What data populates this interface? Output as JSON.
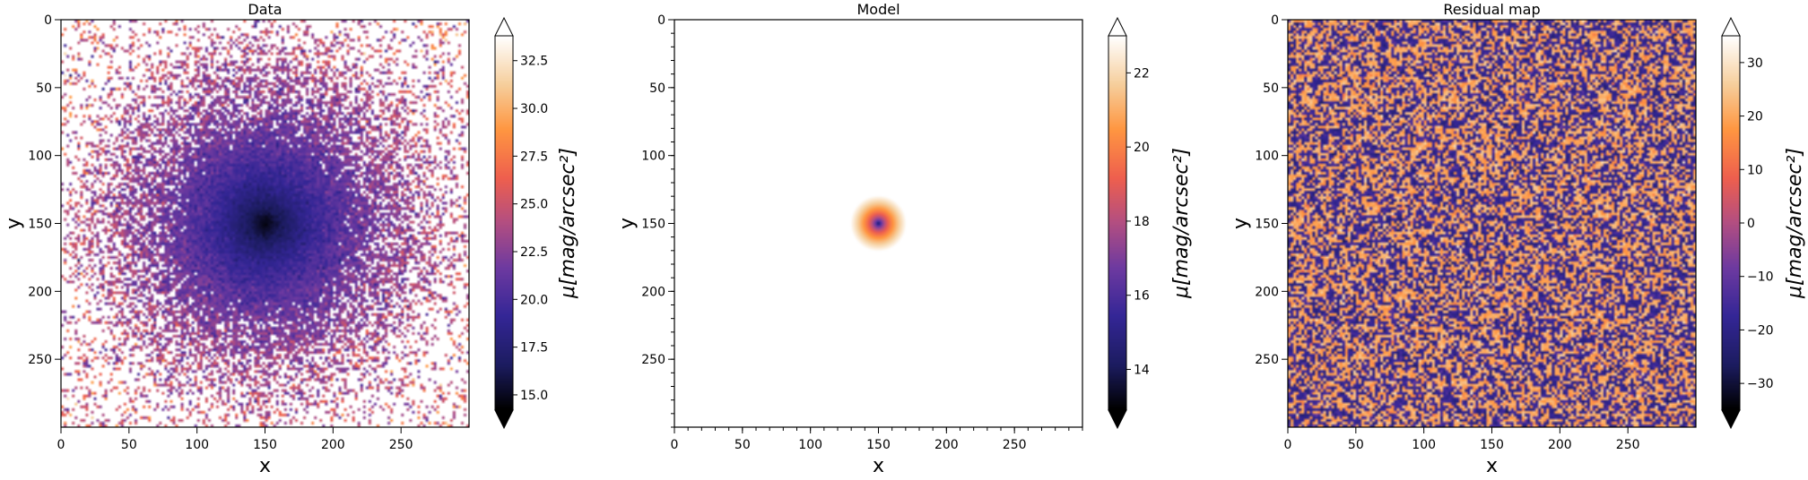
{
  "chart_data": [
    {
      "type": "heatmap",
      "title": "Data",
      "xlabel": "x",
      "ylabel": "y",
      "x_range": [
        0,
        300
      ],
      "y_range": [
        0,
        300
      ],
      "y_inverted": true,
      "xticks": [
        0,
        50,
        100,
        150,
        200,
        250
      ],
      "yticks": [
        0,
        50,
        100,
        150,
        200,
        250
      ],
      "colorbar": {
        "label": "μ[mag/arcsec²]",
        "range": [
          14.2,
          33.8
        ],
        "ticks": [
          15.0,
          17.5,
          20.0,
          22.5,
          25.0,
          27.5,
          30.0,
          32.5
        ],
        "tick_labels": [
          "15.0",
          "17.5",
          "20.0",
          "22.5",
          "25.0",
          "27.5",
          "30.0",
          "32.5"
        ],
        "extend": "both",
        "colormap": "CMRmap-like (black-navy-purple-orange-white)"
      },
      "description": "noisy surface brightness of a galaxy centered near (150,150); many masked/white pixels in outskirts",
      "center": [
        150,
        150
      ],
      "grid": false
    },
    {
      "type": "heatmap",
      "title": "Model",
      "xlabel": "x",
      "ylabel": "y",
      "x_range": [
        0,
        300
      ],
      "y_range": [
        0,
        300
      ],
      "y_inverted": true,
      "xticks": [
        0,
        50,
        100,
        150,
        200,
        250
      ],
      "yticks": [
        0,
        50,
        100,
        150,
        200,
        250
      ],
      "colorbar": {
        "label": "μ[mag/arcsec²]",
        "range": [
          12.9,
          23.0
        ],
        "ticks": [
          14,
          16,
          18,
          20,
          22
        ],
        "tick_labels": [
          "14",
          "16",
          "18",
          "20",
          "22"
        ],
        "extend": "both",
        "colormap": "CMRmap-like (black-navy-purple-orange-white)"
      },
      "description": "smooth radial model profile centered at (150,150), faint toward corners",
      "center": [
        150,
        150
      ],
      "grid": false
    },
    {
      "type": "heatmap",
      "title": "Residual map",
      "xlabel": "x",
      "ylabel": "y",
      "x_range": [
        0,
        300
      ],
      "y_range": [
        0,
        300
      ],
      "y_inverted": true,
      "xticks": [
        0,
        50,
        100,
        150,
        200,
        250
      ],
      "yticks": [
        0,
        50,
        100,
        150,
        200,
        250
      ],
      "colorbar": {
        "label": "μ[mag/arcsec²]",
        "range": [
          -35,
          35
        ],
        "ticks": [
          -30,
          -20,
          -10,
          0,
          10,
          20,
          30
        ],
        "tick_labels": [
          "−30",
          "−20",
          "−10",
          "0",
          "10",
          "20",
          "30"
        ],
        "extend": "both",
        "colormap": "CMRmap-like (black-navy-purple-orange-white)"
      },
      "description": "noise-like residuals alternating between navy (about −20) and peach (about +20)",
      "grid": false
    }
  ]
}
